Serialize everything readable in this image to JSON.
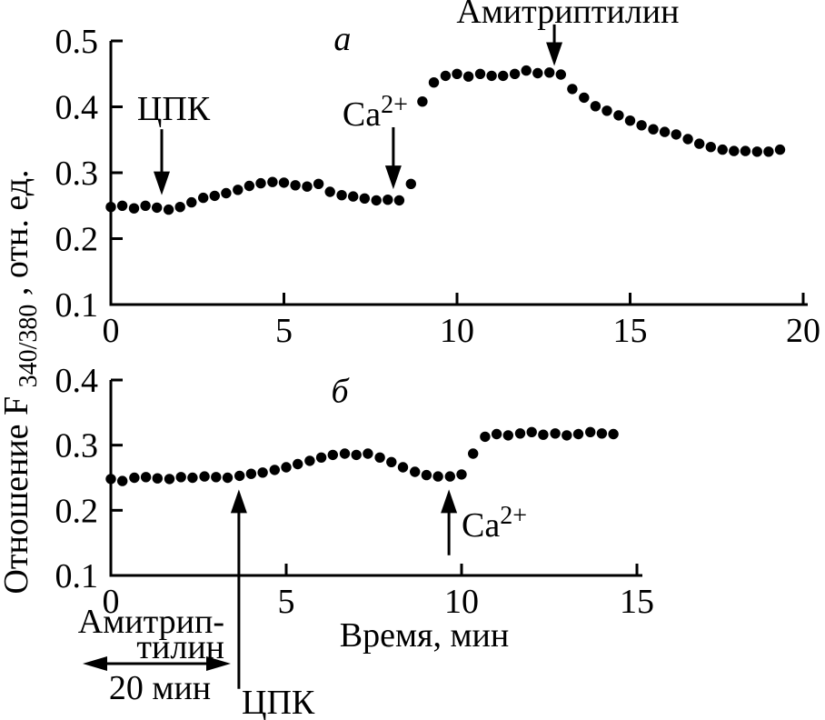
{
  "page": {
    "background": "#ffffff",
    "ink": "#000000"
  },
  "axis_labels": {
    "y_pre": "Отношение F",
    "y_sub": "340/380",
    "y_post": ", отн. ед.",
    "x": "Время, мин"
  },
  "bottom_annotations": {
    "pretreatment_line1": "Амитрип-",
    "pretreatment_line2": "тилин",
    "pretreatment_duration": "20 мин"
  },
  "chart_data": [
    {
      "panel": "а",
      "panel_key": "a",
      "type": "scatter",
      "marker": "filled-circle",
      "color": "#000000",
      "xlim": [
        0,
        20
      ],
      "ylim": [
        0.1,
        0.5
      ],
      "grid": false,
      "xticks": [
        {
          "value": 0,
          "label": "0"
        },
        {
          "value": 5,
          "label": "5"
        },
        {
          "value": 10,
          "label": "10"
        },
        {
          "value": 15,
          "label": "15"
        },
        {
          "value": 20,
          "label": "20"
        }
      ],
      "yticks": [
        {
          "value": 0.1,
          "label": "0.1"
        },
        {
          "value": 0.2,
          "label": "0.2"
        },
        {
          "value": 0.3,
          "label": "0.3"
        },
        {
          "value": 0.4,
          "label": "0.4"
        },
        {
          "value": 0.5,
          "label": "0.5"
        }
      ],
      "panel_label": {
        "text": "а",
        "t": 6.69,
        "v": 0.486
      },
      "points": [
        [
          0,
          0.248
        ],
        [
          0.33,
          0.25
        ],
        [
          0.67,
          0.246
        ],
        [
          1,
          0.25
        ],
        [
          1.33,
          0.247
        ],
        [
          1.67,
          0.244
        ],
        [
          2,
          0.248
        ],
        [
          2.33,
          0.255
        ],
        [
          2.67,
          0.262
        ],
        [
          3,
          0.265
        ],
        [
          3.33,
          0.269
        ],
        [
          3.67,
          0.274
        ],
        [
          4,
          0.28
        ],
        [
          4.33,
          0.284
        ],
        [
          4.67,
          0.286
        ],
        [
          5,
          0.285
        ],
        [
          5.33,
          0.281
        ],
        [
          5.67,
          0.279
        ],
        [
          6,
          0.283
        ],
        [
          6.33,
          0.271
        ],
        [
          6.67,
          0.266
        ],
        [
          7,
          0.264
        ],
        [
          7.33,
          0.261
        ],
        [
          7.67,
          0.258
        ],
        [
          8,
          0.259
        ],
        [
          8.33,
          0.258
        ],
        [
          8.67,
          0.283
        ],
        [
          9,
          0.408
        ],
        [
          9.33,
          0.437
        ],
        [
          9.67,
          0.447
        ],
        [
          10,
          0.45
        ],
        [
          10.33,
          0.446
        ],
        [
          10.67,
          0.45
        ],
        [
          11,
          0.447
        ],
        [
          11.33,
          0.447
        ],
        [
          11.67,
          0.45
        ],
        [
          12,
          0.455
        ],
        [
          12.33,
          0.451
        ],
        [
          12.67,
          0.452
        ],
        [
          13,
          0.449
        ],
        [
          13.33,
          0.427
        ],
        [
          13.67,
          0.414
        ],
        [
          14,
          0.401
        ],
        [
          14.33,
          0.394
        ],
        [
          14.67,
          0.387
        ],
        [
          15,
          0.379
        ],
        [
          15.33,
          0.372
        ],
        [
          15.67,
          0.366
        ],
        [
          16,
          0.362
        ],
        [
          16.33,
          0.358
        ],
        [
          16.67,
          0.351
        ],
        [
          17,
          0.344
        ],
        [
          17.33,
          0.339
        ],
        [
          17.67,
          0.335
        ],
        [
          18,
          0.333
        ],
        [
          18.33,
          0.333
        ],
        [
          18.67,
          0.332
        ],
        [
          19,
          0.332
        ],
        [
          19.33,
          0.335
        ]
      ],
      "annotations": [
        {
          "id": "cpk-a",
          "text": "ЦПК",
          "sup": null,
          "arrow_t": 1.47,
          "arrow_v_from": 0.366,
          "arrow_v_to": 0.266,
          "arrow_dir": "down",
          "label_t": 1.81,
          "label_v": 0.38,
          "label_anchor": "middle"
        },
        {
          "id": "ca-a",
          "text": "Ca",
          "sup": "2+",
          "arrow_t": 8.16,
          "arrow_v_from": 0.369,
          "arrow_v_to": 0.275,
          "arrow_dir": "down",
          "label_t": 6.69,
          "label_v": 0.372,
          "label_anchor": "start"
        },
        {
          "id": "amitriptyline-a",
          "text": "Амитриптилин",
          "sup": null,
          "arrow_t": 12.81,
          "arrow_v_from": 0.525,
          "arrow_v_to": 0.462,
          "arrow_dir": "down",
          "label_t": 13.2,
          "label_v": 0.5276,
          "label_anchor": "middle"
        }
      ]
    },
    {
      "panel": "б",
      "panel_key": "b",
      "type": "scatter",
      "marker": "filled-circle",
      "color": "#000000",
      "xlim": [
        0,
        15
      ],
      "ylim": [
        0.1,
        0.4
      ],
      "grid": false,
      "xticks": [
        {
          "value": 0,
          "label": "0"
        },
        {
          "value": 5,
          "label": "5"
        },
        {
          "value": 10,
          "label": "10"
        },
        {
          "value": 15,
          "label": "15"
        }
      ],
      "yticks": [
        {
          "value": 0.1,
          "label": "0.1"
        },
        {
          "value": 0.2,
          "label": "0.2"
        },
        {
          "value": 0.3,
          "label": "0.3"
        },
        {
          "value": 0.4,
          "label": "0.4"
        }
      ],
      "panel_label": {
        "text": "б",
        "t": 6.53,
        "v": 0.366
      },
      "points": [
        [
          0,
          0.248
        ],
        [
          0.33,
          0.245
        ],
        [
          0.67,
          0.25
        ],
        [
          1,
          0.251
        ],
        [
          1.33,
          0.249
        ],
        [
          1.67,
          0.248
        ],
        [
          2,
          0.251
        ],
        [
          2.33,
          0.25
        ],
        [
          2.67,
          0.252
        ],
        [
          3,
          0.251
        ],
        [
          3.33,
          0.25
        ],
        [
          3.67,
          0.253
        ],
        [
          4,
          0.256
        ],
        [
          4.33,
          0.258
        ],
        [
          4.67,
          0.262
        ],
        [
          5,
          0.266
        ],
        [
          5.33,
          0.271
        ],
        [
          5.67,
          0.276
        ],
        [
          6,
          0.281
        ],
        [
          6.33,
          0.285
        ],
        [
          6.67,
          0.287
        ],
        [
          7,
          0.285
        ],
        [
          7.33,
          0.287
        ],
        [
          7.67,
          0.281
        ],
        [
          8,
          0.274
        ],
        [
          8.33,
          0.266
        ],
        [
          8.67,
          0.259
        ],
        [
          9,
          0.254
        ],
        [
          9.33,
          0.252
        ],
        [
          9.67,
          0.252
        ],
        [
          10,
          0.255
        ],
        [
          10.33,
          0.287
        ],
        [
          10.67,
          0.313
        ],
        [
          11,
          0.317
        ],
        [
          11.33,
          0.315
        ],
        [
          11.67,
          0.318
        ],
        [
          12,
          0.32
        ],
        [
          12.33,
          0.316
        ],
        [
          12.67,
          0.318
        ],
        [
          13,
          0.315
        ],
        [
          13.33,
          0.317
        ],
        [
          13.67,
          0.32
        ],
        [
          14,
          0.318
        ],
        [
          14.33,
          0.317
        ]
      ],
      "annotations": [
        {
          "id": "cpk-b",
          "text": "ЦПК",
          "sup": null,
          "arrow_t": 3.65,
          "arrow_v_from": -0.074,
          "arrow_v_to": 0.232,
          "arrow_dir": "up",
          "label_t": 3.73,
          "label_v": -0.112,
          "label_anchor": "start"
        },
        {
          "id": "ca-b",
          "text": "Ca",
          "sup": "2+",
          "arrow_t": 9.64,
          "arrow_v_from": 0.131,
          "arrow_v_to": 0.232,
          "arrow_dir": "up",
          "label_t": 10.0,
          "label_v": 0.16,
          "label_anchor": "start"
        }
      ]
    }
  ]
}
